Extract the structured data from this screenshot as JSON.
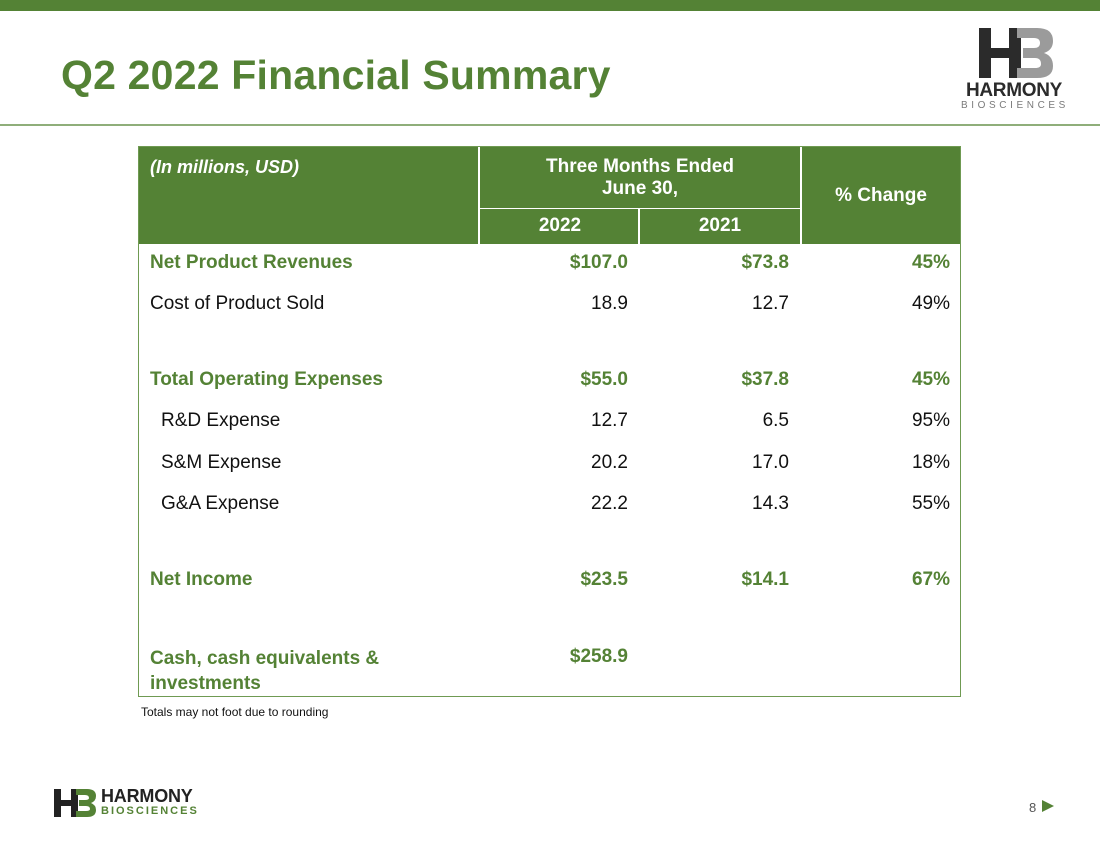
{
  "slide": {
    "title": "Q2 2022 Financial Summary",
    "page_number": "8",
    "footnote": "Totals may not foot due to rounding",
    "accent_color": "#548235"
  },
  "logo": {
    "name": "HARMONY",
    "subtitle": "BIOSCIENCES"
  },
  "table": {
    "units_label": "(In millions, USD)",
    "period_label_line1": "Three Months Ended",
    "period_label_line2": "June 30,",
    "year_current": "2022",
    "year_prior": "2021",
    "change_label": "% Change",
    "rows": [
      {
        "label": "Net Product Revenues",
        "v2022": "$107.0",
        "v2021": "$73.8",
        "change": "45%"
      },
      {
        "label": "Cost of Product Sold",
        "v2022": "18.9",
        "v2021": "12.7",
        "change": "49%"
      },
      {
        "label": "Total Operating Expenses",
        "v2022": "$55.0",
        "v2021": "$37.8",
        "change": "45%"
      },
      {
        "label": "R&D Expense",
        "v2022": "12.7",
        "v2021": "6.5",
        "change": "95%"
      },
      {
        "label": "S&M Expense",
        "v2022": "20.2",
        "v2021": "17.0",
        "change": "18%"
      },
      {
        "label": "G&A Expense",
        "v2022": "22.2",
        "v2021": "14.3",
        "change": "55%"
      },
      {
        "label": "Net Income",
        "v2022": "$23.5",
        "v2021": "$14.1",
        "change": "67%"
      },
      {
        "label_line1": "Cash, cash equivalents &",
        "label_line2": "investments",
        "v2022": "$258.9",
        "v2021": "",
        "change": ""
      }
    ]
  }
}
